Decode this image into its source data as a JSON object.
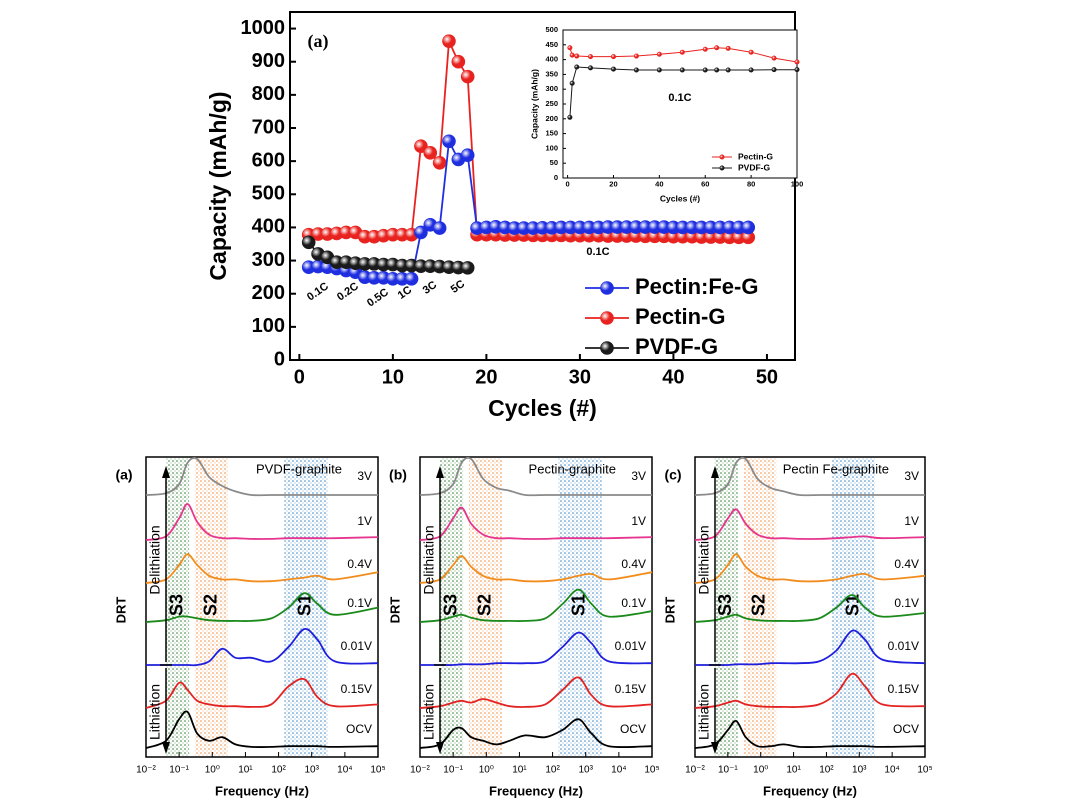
{
  "chart_data": [
    {
      "type": "line",
      "ylabel": "Capacity (mAh/g)",
      "xlabel": "Cycles (#)",
      "xlim": [
        -1,
        53
      ],
      "xticks": [
        0,
        10,
        20,
        30,
        40,
        50
      ],
      "ylim": [
        0,
        1050
      ],
      "yticks": [
        0,
        100,
        200,
        300,
        400,
        500,
        600,
        700,
        800,
        900,
        1000
      ],
      "annotations": [
        "(a)",
        "0.1C",
        "0.2C",
        "0.5C",
        "1C",
        "3C",
        "5C",
        "0.1C"
      ],
      "legend": "lower right",
      "series": [
        {
          "name": "Pectin-G",
          "color": "#e8231f",
          "x": [
            1,
            2,
            3,
            4,
            5,
            6,
            7,
            8,
            9,
            10,
            11,
            12,
            13,
            14,
            15,
            16,
            17,
            18,
            19,
            20,
            21,
            22,
            23,
            24,
            25,
            26,
            27,
            28,
            29,
            30,
            31,
            32,
            33,
            34,
            35,
            36,
            37,
            38,
            39,
            40,
            41,
            42,
            43,
            44,
            45,
            46,
            47,
            48
          ],
          "values": [
            378,
            380,
            380,
            382,
            385,
            385,
            372,
            372,
            375,
            378,
            378,
            378,
            645,
            625,
            595,
            962,
            900,
            855,
            378,
            378,
            378,
            377,
            377,
            377,
            376,
            376,
            376,
            376,
            375,
            375,
            375,
            375,
            374,
            374,
            374,
            374,
            373,
            373,
            373,
            372,
            372,
            372,
            371,
            371,
            371,
            370,
            370,
            370
          ]
        },
        {
          "name": "Pectin:Fe-G",
          "color": "#1f2fe0",
          "x": [
            1,
            2,
            3,
            4,
            5,
            6,
            7,
            8,
            9,
            10,
            11,
            12,
            13,
            14,
            15,
            16,
            17,
            18,
            19,
            20,
            21,
            22,
            23,
            24,
            25,
            26,
            27,
            28,
            29,
            30,
            31,
            32,
            33,
            34,
            35,
            36,
            37,
            38,
            39,
            40,
            41,
            42,
            43,
            44,
            45,
            46,
            47,
            48
          ],
          "values": [
            280,
            282,
            280,
            276,
            270,
            265,
            250,
            248,
            248,
            245,
            245,
            245,
            385,
            408,
            398,
            660,
            605,
            618,
            398,
            400,
            402,
            400,
            398,
            398,
            398,
            399,
            399,
            400,
            400,
            400,
            400,
            400,
            401,
            401,
            401,
            401,
            401,
            401,
            401,
            400,
            400,
            400,
            400,
            400,
            400,
            400,
            400,
            400
          ]
        },
        {
          "name": "PVDF-G",
          "color": "#1a1a1a",
          "x": [
            1,
            2,
            3,
            4,
            5,
            6,
            7,
            8,
            9,
            10,
            11,
            12,
            13,
            14,
            15,
            16,
            17,
            18
          ],
          "values": [
            355,
            320,
            310,
            295,
            295,
            292,
            290,
            290,
            288,
            288,
            285,
            285,
            283,
            283,
            282,
            280,
            279,
            278
          ]
        }
      ]
    },
    {
      "type": "line",
      "ylabel": "Capacity (mAh/g)",
      "xlabel": "Cycles (#)",
      "xlim": [
        -2,
        100
      ],
      "xticks": [
        0,
        20,
        40,
        60,
        80,
        100
      ],
      "ylim": [
        0,
        500
      ],
      "yticks": [
        0,
        50,
        100,
        150,
        200,
        250,
        300,
        350,
        400,
        450,
        500
      ],
      "annotations": [
        "0.1C"
      ],
      "legend": "lower right",
      "series": [
        {
          "name": "Pectin-G",
          "color": "#e8231f",
          "x": [
            1,
            2,
            4,
            10,
            20,
            30,
            40,
            50,
            60,
            65,
            70,
            80,
            90,
            100
          ],
          "values": [
            440,
            415,
            412,
            410,
            410,
            412,
            418,
            425,
            435,
            440,
            438,
            425,
            405,
            392
          ]
        },
        {
          "name": "PVDF-G",
          "color": "#1a1a1a",
          "x": [
            1,
            2,
            4,
            10,
            20,
            30,
            40,
            50,
            60,
            65,
            70,
            80,
            90,
            100
          ],
          "values": [
            205,
            320,
            375,
            372,
            368,
            365,
            365,
            365,
            365,
            365,
            365,
            365,
            366,
            366
          ]
        }
      ]
    },
    {
      "type": "line",
      "x_scale": "log",
      "panel_label": "(a)",
      "title": "PVDF-graphite",
      "ylabel": "DRT",
      "xlabel": "Frequency (Hz)",
      "annotations": [
        "Delithiation",
        "Lithiation"
      ],
      "xlim": [
        0.01,
        100000
      ],
      "xticks": [
        {
          "value": 0.01,
          "label": "10⁻²"
        },
        {
          "value": 0.1,
          "label": "10⁻¹"
        },
        {
          "value": 1,
          "label": "10⁰"
        },
        {
          "value": 10,
          "label": "10¹"
        },
        {
          "value": 100,
          "label": "10²"
        },
        {
          "value": 1000,
          "label": "10³"
        },
        {
          "value": 10000,
          "label": "10⁴"
        },
        {
          "value": 100000,
          "label": "10⁵"
        }
      ],
      "regions": [
        {
          "label": "S3",
          "color": "#2e7d32",
          "range": [
            0.04,
            0.2
          ]
        },
        {
          "label": "S2",
          "color": "#f08a3c",
          "range": [
            0.3,
            3
          ]
        },
        {
          "label": "S1",
          "color": "#3a86c8",
          "range": [
            150,
            3000
          ]
        }
      ],
      "x": [
        0.01,
        0.04,
        0.1,
        0.18,
        0.35,
        0.8,
        2,
        5,
        15,
        60,
        200,
        600,
        1500,
        5000,
        100000
      ],
      "series": [
        {
          "name": "3V",
          "color": "#8a8a8a",
          "values": [
            0,
            0.05,
            0.3,
            0.9,
            1.0,
            0.5,
            0.25,
            0.1,
            0,
            0,
            0,
            0,
            0,
            0,
            0
          ]
        },
        {
          "name": "1V",
          "color": "#e6358e",
          "values": [
            0,
            0.1,
            0.6,
            1.0,
            0.5,
            0.15,
            0.05,
            0.05,
            0.03,
            0.03,
            0.05,
            0.05,
            0.05,
            0.05,
            0.08
          ]
        },
        {
          "name": "0.4V",
          "color": "#f28c1c",
          "values": [
            0,
            0.1,
            0.5,
            0.8,
            0.5,
            0.2,
            0.1,
            0.1,
            0.05,
            0.05,
            0.1,
            0.15,
            0.2,
            0.1,
            0.3
          ]
        },
        {
          "name": "0.1V",
          "color": "#1a8a1a",
          "values": [
            0,
            0.05,
            0.15,
            0.15,
            0.1,
            0.05,
            0.03,
            0.03,
            0.03,
            0.1,
            0.4,
            0.8,
            0.5,
            0.2,
            0.4
          ]
        },
        {
          "name": "0.01V",
          "color": "#1f1fdd",
          "values": [
            0,
            0,
            0,
            0,
            0,
            0.1,
            0.45,
            0.2,
            0.2,
            0.1,
            0.5,
            1.0,
            0.7,
            0.1,
            0.05
          ]
        },
        {
          "name": "0.15V",
          "color": "#e32222",
          "values": [
            0,
            0.2,
            0.7,
            0.5,
            0.2,
            0.1,
            0.05,
            0.05,
            0.03,
            0.1,
            0.6,
            0.8,
            0.3,
            0.05,
            0.1
          ]
        },
        {
          "name": "OCV",
          "color": "#000000",
          "values": [
            0,
            0.2,
            0.8,
            1.0,
            0.4,
            0.2,
            0.3,
            0.1,
            0.03,
            0.03,
            0.05,
            0.05,
            0.05,
            0.03,
            0.05
          ]
        }
      ]
    },
    {
      "type": "line",
      "x_scale": "log",
      "panel_label": "(b)",
      "title": "Pectin-graphite",
      "ylabel": "DRT",
      "xlabel": "Frequency (Hz)",
      "annotations": [
        "Delithiation",
        "Lithiation"
      ],
      "xlim": [
        0.01,
        100000
      ],
      "xticks": [
        {
          "value": 0.01,
          "label": "10⁻²"
        },
        {
          "value": 0.1,
          "label": "10⁻¹"
        },
        {
          "value": 1,
          "label": "10⁰"
        },
        {
          "value": 10,
          "label": "10¹"
        },
        {
          "value": 100,
          "label": "10²"
        },
        {
          "value": 1000,
          "label": "10³"
        },
        {
          "value": 10000,
          "label": "10⁴"
        },
        {
          "value": 100000,
          "label": "10⁵"
        }
      ],
      "regions": [
        {
          "label": "S3",
          "color": "#2e7d32",
          "range": [
            0.04,
            0.2
          ]
        },
        {
          "label": "S2",
          "color": "#f08a3c",
          "range": [
            0.3,
            3
          ]
        },
        {
          "label": "S1",
          "color": "#3a86c8",
          "range": [
            150,
            3000
          ]
        }
      ],
      "x": [
        0.01,
        0.04,
        0.1,
        0.18,
        0.35,
        0.8,
        2,
        5,
        15,
        60,
        200,
        600,
        1500,
        5000,
        100000
      ],
      "series": [
        {
          "name": "3V",
          "color": "#8a8a8a",
          "values": [
            0,
            0.05,
            0.3,
            0.9,
            1.0,
            0.45,
            0.2,
            0.12,
            0,
            0,
            0,
            0,
            0,
            0,
            0
          ]
        },
        {
          "name": "1V",
          "color": "#e6358e",
          "values": [
            0,
            0.1,
            0.6,
            0.9,
            0.45,
            0.15,
            0.05,
            0.05,
            0.03,
            0.03,
            0.05,
            0.05,
            0.05,
            0.05,
            0.08
          ]
        },
        {
          "name": "0.4V",
          "color": "#f28c1c",
          "values": [
            0,
            0.1,
            0.5,
            0.75,
            0.45,
            0.2,
            0.1,
            0.1,
            0.05,
            0.05,
            0.1,
            0.2,
            0.25,
            0.1,
            0.3
          ]
        },
        {
          "name": "0.1V",
          "color": "#1a8a1a",
          "values": [
            0,
            0.05,
            0.15,
            0.2,
            0.12,
            0.05,
            0.03,
            0.03,
            0.03,
            0.1,
            0.5,
            0.9,
            0.5,
            0.15,
            0.3
          ]
        },
        {
          "name": "0.01V",
          "color": "#1f1fdd",
          "values": [
            0,
            0,
            0,
            0.02,
            0.02,
            0.02,
            0.05,
            0.05,
            0.05,
            0.1,
            0.5,
            0.9,
            0.6,
            0.1,
            0.05
          ]
        },
        {
          "name": "0.15V",
          "color": "#e32222",
          "values": [
            0,
            0.05,
            0.15,
            0.2,
            0.15,
            0.25,
            0.15,
            0.05,
            0.03,
            0.1,
            0.5,
            0.85,
            0.35,
            0.05,
            0.1
          ]
        },
        {
          "name": "OCV",
          "color": "#000000",
          "values": [
            0,
            0.1,
            0.5,
            0.55,
            0.3,
            0.2,
            0.1,
            0.2,
            0.35,
            0.3,
            0.5,
            0.8,
            0.4,
            0.05,
            0.05
          ]
        }
      ]
    },
    {
      "type": "line",
      "x_scale": "log",
      "panel_label": "(c)",
      "title": "Pectin Fe-graphite",
      "ylabel": "DRT",
      "xlabel": "Frequency (Hz)",
      "annotations": [
        "Delithiation",
        "Lithiation"
      ],
      "xlim": [
        0.01,
        100000
      ],
      "xticks": [
        {
          "value": 0.01,
          "label": "10⁻²"
        },
        {
          "value": 0.1,
          "label": "10⁻¹"
        },
        {
          "value": 1,
          "label": "10⁰"
        },
        {
          "value": 10,
          "label": "10¹"
        },
        {
          "value": 100,
          "label": "10²"
        },
        {
          "value": 1000,
          "label": "10³"
        },
        {
          "value": 10000,
          "label": "10⁴"
        },
        {
          "value": 100000,
          "label": "10⁵"
        }
      ],
      "regions": [
        {
          "label": "S3",
          "color": "#2e7d32",
          "range": [
            0.04,
            0.2
          ]
        },
        {
          "label": "S2",
          "color": "#f08a3c",
          "range": [
            0.3,
            3
          ]
        },
        {
          "label": "S1",
          "color": "#3a86c8",
          "range": [
            150,
            3000
          ]
        }
      ],
      "x": [
        0.01,
        0.04,
        0.1,
        0.18,
        0.35,
        0.8,
        2,
        5,
        15,
        60,
        200,
        600,
        1500,
        5000,
        100000
      ],
      "series": [
        {
          "name": "3V",
          "color": "#8a8a8a",
          "values": [
            0,
            0.05,
            0.3,
            0.9,
            1.0,
            0.45,
            0.2,
            0.1,
            0,
            0,
            0,
            0,
            0,
            0,
            0
          ]
        },
        {
          "name": "1V",
          "color": "#e6358e",
          "values": [
            0,
            0.1,
            0.6,
            0.85,
            0.45,
            0.15,
            0.05,
            0.05,
            0.03,
            0.03,
            0.05,
            0.08,
            0.1,
            0.05,
            0.08
          ]
        },
        {
          "name": "0.4V",
          "color": "#f28c1c",
          "values": [
            0,
            0.1,
            0.5,
            0.8,
            0.45,
            0.2,
            0.1,
            0.1,
            0.05,
            0.05,
            0.1,
            0.2,
            0.25,
            0.1,
            0.2
          ]
        },
        {
          "name": "0.1V",
          "color": "#1a8a1a",
          "values": [
            0,
            0.05,
            0.15,
            0.2,
            0.1,
            0.05,
            0.03,
            0.03,
            0.03,
            0.1,
            0.4,
            0.75,
            0.4,
            0.15,
            0.25
          ]
        },
        {
          "name": "0.01V",
          "color": "#1f1fdd",
          "values": [
            0,
            0,
            0,
            0.02,
            0.02,
            0.02,
            0.05,
            0.05,
            0.05,
            0.1,
            0.4,
            0.95,
            0.7,
            0.15,
            0.05
          ]
        },
        {
          "name": "0.15V",
          "color": "#e32222",
          "values": [
            0,
            0.05,
            0.15,
            0.2,
            0.1,
            0.05,
            0.03,
            0.03,
            0.03,
            0.1,
            0.4,
            0.95,
            0.6,
            0.1,
            0.05
          ]
        },
        {
          "name": "OCV",
          "color": "#000000",
          "values": [
            0,
            0.1,
            0.5,
            0.75,
            0.3,
            0.05,
            0.05,
            0.1,
            0.03,
            0.03,
            0.05,
            0.05,
            0.05,
            0.03,
            0.05
          ]
        }
      ]
    }
  ]
}
